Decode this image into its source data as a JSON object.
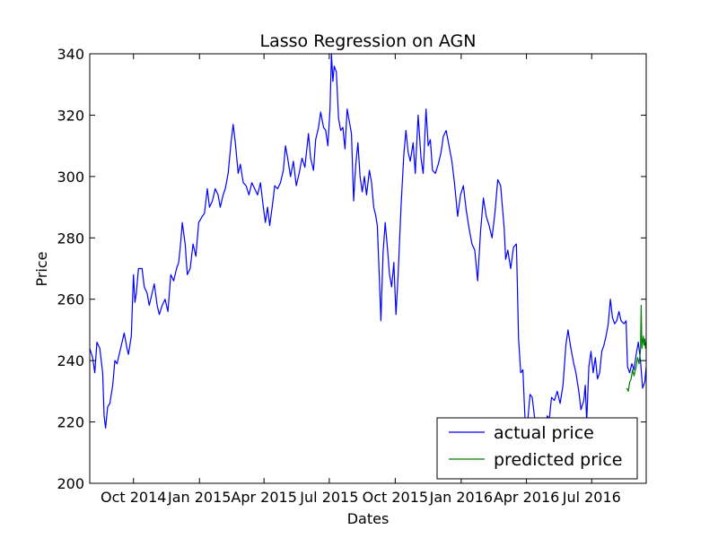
{
  "chart_data": {
    "type": "line",
    "title": "Lasso Regression on AGN",
    "xlabel": "Dates",
    "ylabel": "Price",
    "xlim": [
      "2014-08-01",
      "2016-09-15"
    ],
    "ylim": [
      200,
      340
    ],
    "x_ticks": [
      {
        "date": "2014-10-01",
        "label": "Oct 2014"
      },
      {
        "date": "2015-01-01",
        "label": "Jan 2015"
      },
      {
        "date": "2015-04-01",
        "label": "Apr 2015"
      },
      {
        "date": "2015-07-01",
        "label": "Jul 2015"
      },
      {
        "date": "2015-10-01",
        "label": "Oct 2015"
      },
      {
        "date": "2016-01-01",
        "label": "Jan 2016"
      },
      {
        "date": "2016-04-01",
        "label": "Apr 2016"
      },
      {
        "date": "2016-07-01",
        "label": "Jul 2016"
      }
    ],
    "y_ticks": [
      200,
      220,
      240,
      260,
      280,
      300,
      320,
      340
    ],
    "grid": false,
    "legend": {
      "position": "bottom-right"
    },
    "series": [
      {
        "name": "actual price",
        "color": "#0000ff",
        "points": [
          [
            "2014-08-01",
            244
          ],
          [
            "2014-08-05",
            241
          ],
          [
            "2014-08-08",
            236
          ],
          [
            "2014-08-11",
            246
          ],
          [
            "2014-08-15",
            244
          ],
          [
            "2014-08-19",
            236
          ],
          [
            "2014-08-21",
            222
          ],
          [
            "2014-08-23",
            218
          ],
          [
            "2014-08-26",
            225
          ],
          [
            "2014-08-29",
            226
          ],
          [
            "2014-09-02",
            232
          ],
          [
            "2014-09-05",
            240
          ],
          [
            "2014-09-08",
            239
          ],
          [
            "2014-09-12",
            243
          ],
          [
            "2014-09-15",
            246
          ],
          [
            "2014-09-18",
            249
          ],
          [
            "2014-09-22",
            244
          ],
          [
            "2014-09-24",
            242
          ],
          [
            "2014-09-28",
            248
          ],
          [
            "2014-10-01",
            268
          ],
          [
            "2014-10-03",
            259
          ],
          [
            "2014-10-05",
            262
          ],
          [
            "2014-10-08",
            270
          ],
          [
            "2014-10-13",
            270
          ],
          [
            "2014-10-16",
            264
          ],
          [
            "2014-10-20",
            262
          ],
          [
            "2014-10-23",
            258
          ],
          [
            "2014-10-27",
            262
          ],
          [
            "2014-10-30",
            265
          ],
          [
            "2014-11-03",
            258
          ],
          [
            "2014-11-06",
            255
          ],
          [
            "2014-11-10",
            258
          ],
          [
            "2014-11-14",
            260
          ],
          [
            "2014-11-18",
            256
          ],
          [
            "2014-11-22",
            268
          ],
          [
            "2014-11-26",
            266
          ],
          [
            "2014-11-30",
            270
          ],
          [
            "2014-12-03",
            272
          ],
          [
            "2014-12-06",
            279
          ],
          [
            "2014-12-08",
            285
          ],
          [
            "2014-12-12",
            278
          ],
          [
            "2014-12-15",
            268
          ],
          [
            "2014-12-19",
            270
          ],
          [
            "2014-12-23",
            278
          ],
          [
            "2014-12-27",
            274
          ],
          [
            "2014-12-31",
            285
          ],
          [
            "2015-01-05",
            287
          ],
          [
            "2015-01-08",
            288
          ],
          [
            "2015-01-12",
            296
          ],
          [
            "2015-01-15",
            290
          ],
          [
            "2015-01-19",
            292
          ],
          [
            "2015-01-23",
            296
          ],
          [
            "2015-01-27",
            294
          ],
          [
            "2015-01-30",
            290
          ],
          [
            "2015-02-03",
            294
          ],
          [
            "2015-02-06",
            296
          ],
          [
            "2015-02-10",
            301
          ],
          [
            "2015-02-14",
            311
          ],
          [
            "2015-02-17",
            317
          ],
          [
            "2015-02-20",
            311
          ],
          [
            "2015-02-24",
            301
          ],
          [
            "2015-02-27",
            304
          ],
          [
            "2015-03-03",
            298
          ],
          [
            "2015-03-07",
            297
          ],
          [
            "2015-03-11",
            294
          ],
          [
            "2015-03-15",
            298
          ],
          [
            "2015-03-19",
            296
          ],
          [
            "2015-03-23",
            294
          ],
          [
            "2015-03-27",
            298
          ],
          [
            "2015-03-31",
            290
          ],
          [
            "2015-04-03",
            285
          ],
          [
            "2015-04-06",
            290
          ],
          [
            "2015-04-09",
            284
          ],
          [
            "2015-04-13",
            291
          ],
          [
            "2015-04-16",
            297
          ],
          [
            "2015-04-20",
            296
          ],
          [
            "2015-04-24",
            298
          ],
          [
            "2015-04-28",
            302
          ],
          [
            "2015-05-01",
            310
          ],
          [
            "2015-05-04",
            306
          ],
          [
            "2015-05-08",
            300
          ],
          [
            "2015-05-12",
            305
          ],
          [
            "2015-05-16",
            297
          ],
          [
            "2015-05-20",
            301
          ],
          [
            "2015-05-24",
            306
          ],
          [
            "2015-05-28",
            303
          ],
          [
            "2015-06-02",
            314
          ],
          [
            "2015-06-05",
            306
          ],
          [
            "2015-06-09",
            302
          ],
          [
            "2015-06-12",
            312
          ],
          [
            "2015-06-16",
            316
          ],
          [
            "2015-06-19",
            321
          ],
          [
            "2015-06-23",
            316
          ],
          [
            "2015-06-26",
            315
          ],
          [
            "2015-06-29",
            310
          ],
          [
            "2015-07-02",
            322
          ],
          [
            "2015-07-04",
            340
          ],
          [
            "2015-07-06",
            331
          ],
          [
            "2015-07-08",
            336
          ],
          [
            "2015-07-11",
            334
          ],
          [
            "2015-07-14",
            319
          ],
          [
            "2015-07-17",
            315
          ],
          [
            "2015-07-20",
            316
          ],
          [
            "2015-07-23",
            309
          ],
          [
            "2015-07-26",
            322
          ],
          [
            "2015-07-29",
            318
          ],
          [
            "2015-08-01",
            314
          ],
          [
            "2015-08-04",
            292
          ],
          [
            "2015-08-07",
            304
          ],
          [
            "2015-08-10",
            311
          ],
          [
            "2015-08-13",
            300
          ],
          [
            "2015-08-16",
            295
          ],
          [
            "2015-08-19",
            300
          ],
          [
            "2015-08-22",
            294
          ],
          [
            "2015-08-26",
            302
          ],
          [
            "2015-08-29",
            298
          ],
          [
            "2015-09-01",
            290
          ],
          [
            "2015-09-04",
            287
          ],
          [
            "2015-09-06",
            284
          ],
          [
            "2015-09-09",
            266
          ],
          [
            "2015-09-11",
            253
          ],
          [
            "2015-09-14",
            275
          ],
          [
            "2015-09-17",
            285
          ],
          [
            "2015-09-20",
            277
          ],
          [
            "2015-09-23",
            268
          ],
          [
            "2015-09-26",
            264
          ],
          [
            "2015-09-29",
            272
          ],
          [
            "2015-10-02",
            255
          ],
          [
            "2015-10-05",
            268
          ],
          [
            "2015-10-09",
            290
          ],
          [
            "2015-10-13",
            307
          ],
          [
            "2015-10-16",
            315
          ],
          [
            "2015-10-19",
            308
          ],
          [
            "2015-10-22",
            305
          ],
          [
            "2015-10-26",
            311
          ],
          [
            "2015-10-29",
            301
          ],
          [
            "2015-11-02",
            320
          ],
          [
            "2015-11-06",
            306
          ],
          [
            "2015-11-09",
            301
          ],
          [
            "2015-11-13",
            322
          ],
          [
            "2015-11-16",
            310
          ],
          [
            "2015-11-19",
            312
          ],
          [
            "2015-11-22",
            302
          ],
          [
            "2015-11-26",
            301
          ],
          [
            "2015-11-30",
            304
          ],
          [
            "2015-12-04",
            308
          ],
          [
            "2015-12-07",
            313
          ],
          [
            "2015-12-11",
            315
          ],
          [
            "2015-12-15",
            310
          ],
          [
            "2015-12-19",
            305
          ],
          [
            "2015-12-23",
            297
          ],
          [
            "2015-12-27",
            287
          ],
          [
            "2015-12-31",
            294
          ],
          [
            "2016-01-04",
            297
          ],
          [
            "2016-01-08",
            289
          ],
          [
            "2016-01-12",
            283
          ],
          [
            "2016-01-16",
            278
          ],
          [
            "2016-01-20",
            276
          ],
          [
            "2016-01-24",
            266
          ],
          [
            "2016-01-28",
            282
          ],
          [
            "2016-02-01",
            293
          ],
          [
            "2016-02-05",
            287
          ],
          [
            "2016-02-09",
            284
          ],
          [
            "2016-02-13",
            280
          ],
          [
            "2016-02-17",
            288
          ],
          [
            "2016-02-21",
            299
          ],
          [
            "2016-02-25",
            297
          ],
          [
            "2016-03-01",
            283
          ],
          [
            "2016-03-03",
            273
          ],
          [
            "2016-03-06",
            276
          ],
          [
            "2016-03-10",
            270
          ],
          [
            "2016-03-14",
            277
          ],
          [
            "2016-03-18",
            278
          ],
          [
            "2016-03-21",
            247
          ],
          [
            "2016-03-24",
            236
          ],
          [
            "2016-03-27",
            237
          ],
          [
            "2016-03-29",
            226
          ],
          [
            "2016-03-31",
            216
          ],
          [
            "2016-04-03",
            221
          ],
          [
            "2016-04-06",
            229
          ],
          [
            "2016-04-09",
            228
          ],
          [
            "2016-04-12",
            222
          ],
          [
            "2016-04-16",
            216
          ],
          [
            "2016-04-19",
            209
          ],
          [
            "2016-04-22",
            204
          ],
          [
            "2016-04-24",
            202
          ],
          [
            "2016-04-27",
            214
          ],
          [
            "2016-04-30",
            222
          ],
          [
            "2016-05-03",
            221
          ],
          [
            "2016-05-06",
            228
          ],
          [
            "2016-05-10",
            227
          ],
          [
            "2016-05-14",
            230
          ],
          [
            "2016-05-18",
            226
          ],
          [
            "2016-05-22",
            232
          ],
          [
            "2016-05-26",
            245
          ],
          [
            "2016-05-29",
            250
          ],
          [
            "2016-06-02",
            244
          ],
          [
            "2016-06-06",
            239
          ],
          [
            "2016-06-09",
            236
          ],
          [
            "2016-06-13",
            230
          ],
          [
            "2016-06-16",
            224
          ],
          [
            "2016-06-20",
            227
          ],
          [
            "2016-06-22",
            232
          ],
          [
            "2016-06-24",
            220
          ],
          [
            "2016-06-27",
            238
          ],
          [
            "2016-06-30",
            243
          ],
          [
            "2016-07-03",
            236
          ],
          [
            "2016-07-06",
            241
          ],
          [
            "2016-07-09",
            234
          ],
          [
            "2016-07-12",
            236
          ],
          [
            "2016-07-15",
            243
          ],
          [
            "2016-07-18",
            245
          ],
          [
            "2016-07-21",
            248
          ],
          [
            "2016-07-24",
            252
          ],
          [
            "2016-07-27",
            260
          ],
          [
            "2016-07-30",
            254
          ],
          [
            "2016-08-02",
            252
          ],
          [
            "2016-08-05",
            253
          ],
          [
            "2016-08-08",
            256
          ],
          [
            "2016-08-11",
            253
          ],
          [
            "2016-08-15",
            252
          ],
          [
            "2016-08-18",
            253
          ],
          [
            "2016-08-20",
            238
          ],
          [
            "2016-08-23",
            236
          ],
          [
            "2016-08-26",
            239
          ],
          [
            "2016-08-29",
            237
          ],
          [
            "2016-09-01",
            242
          ],
          [
            "2016-09-04",
            246
          ],
          [
            "2016-09-07",
            240
          ],
          [
            "2016-09-10",
            231
          ],
          [
            "2016-09-13",
            233
          ],
          [
            "2016-09-15",
            238
          ]
        ]
      },
      {
        "name": "predicted price",
        "color": "#008000",
        "points": [
          [
            "2016-08-19",
            231
          ],
          [
            "2016-08-21",
            230
          ],
          [
            "2016-08-23",
            233
          ],
          [
            "2016-08-25",
            234
          ],
          [
            "2016-08-27",
            237
          ],
          [
            "2016-08-29",
            235
          ],
          [
            "2016-09-01",
            238
          ],
          [
            "2016-09-03",
            241
          ],
          [
            "2016-09-05",
            239
          ],
          [
            "2016-09-07",
            243
          ],
          [
            "2016-09-08",
            258
          ],
          [
            "2016-09-09",
            244
          ],
          [
            "2016-09-10",
            246
          ],
          [
            "2016-09-11",
            248
          ],
          [
            "2016-09-12",
            245
          ],
          [
            "2016-09-13",
            247
          ],
          [
            "2016-09-14",
            244
          ],
          [
            "2016-09-15",
            246
          ]
        ]
      }
    ]
  }
}
